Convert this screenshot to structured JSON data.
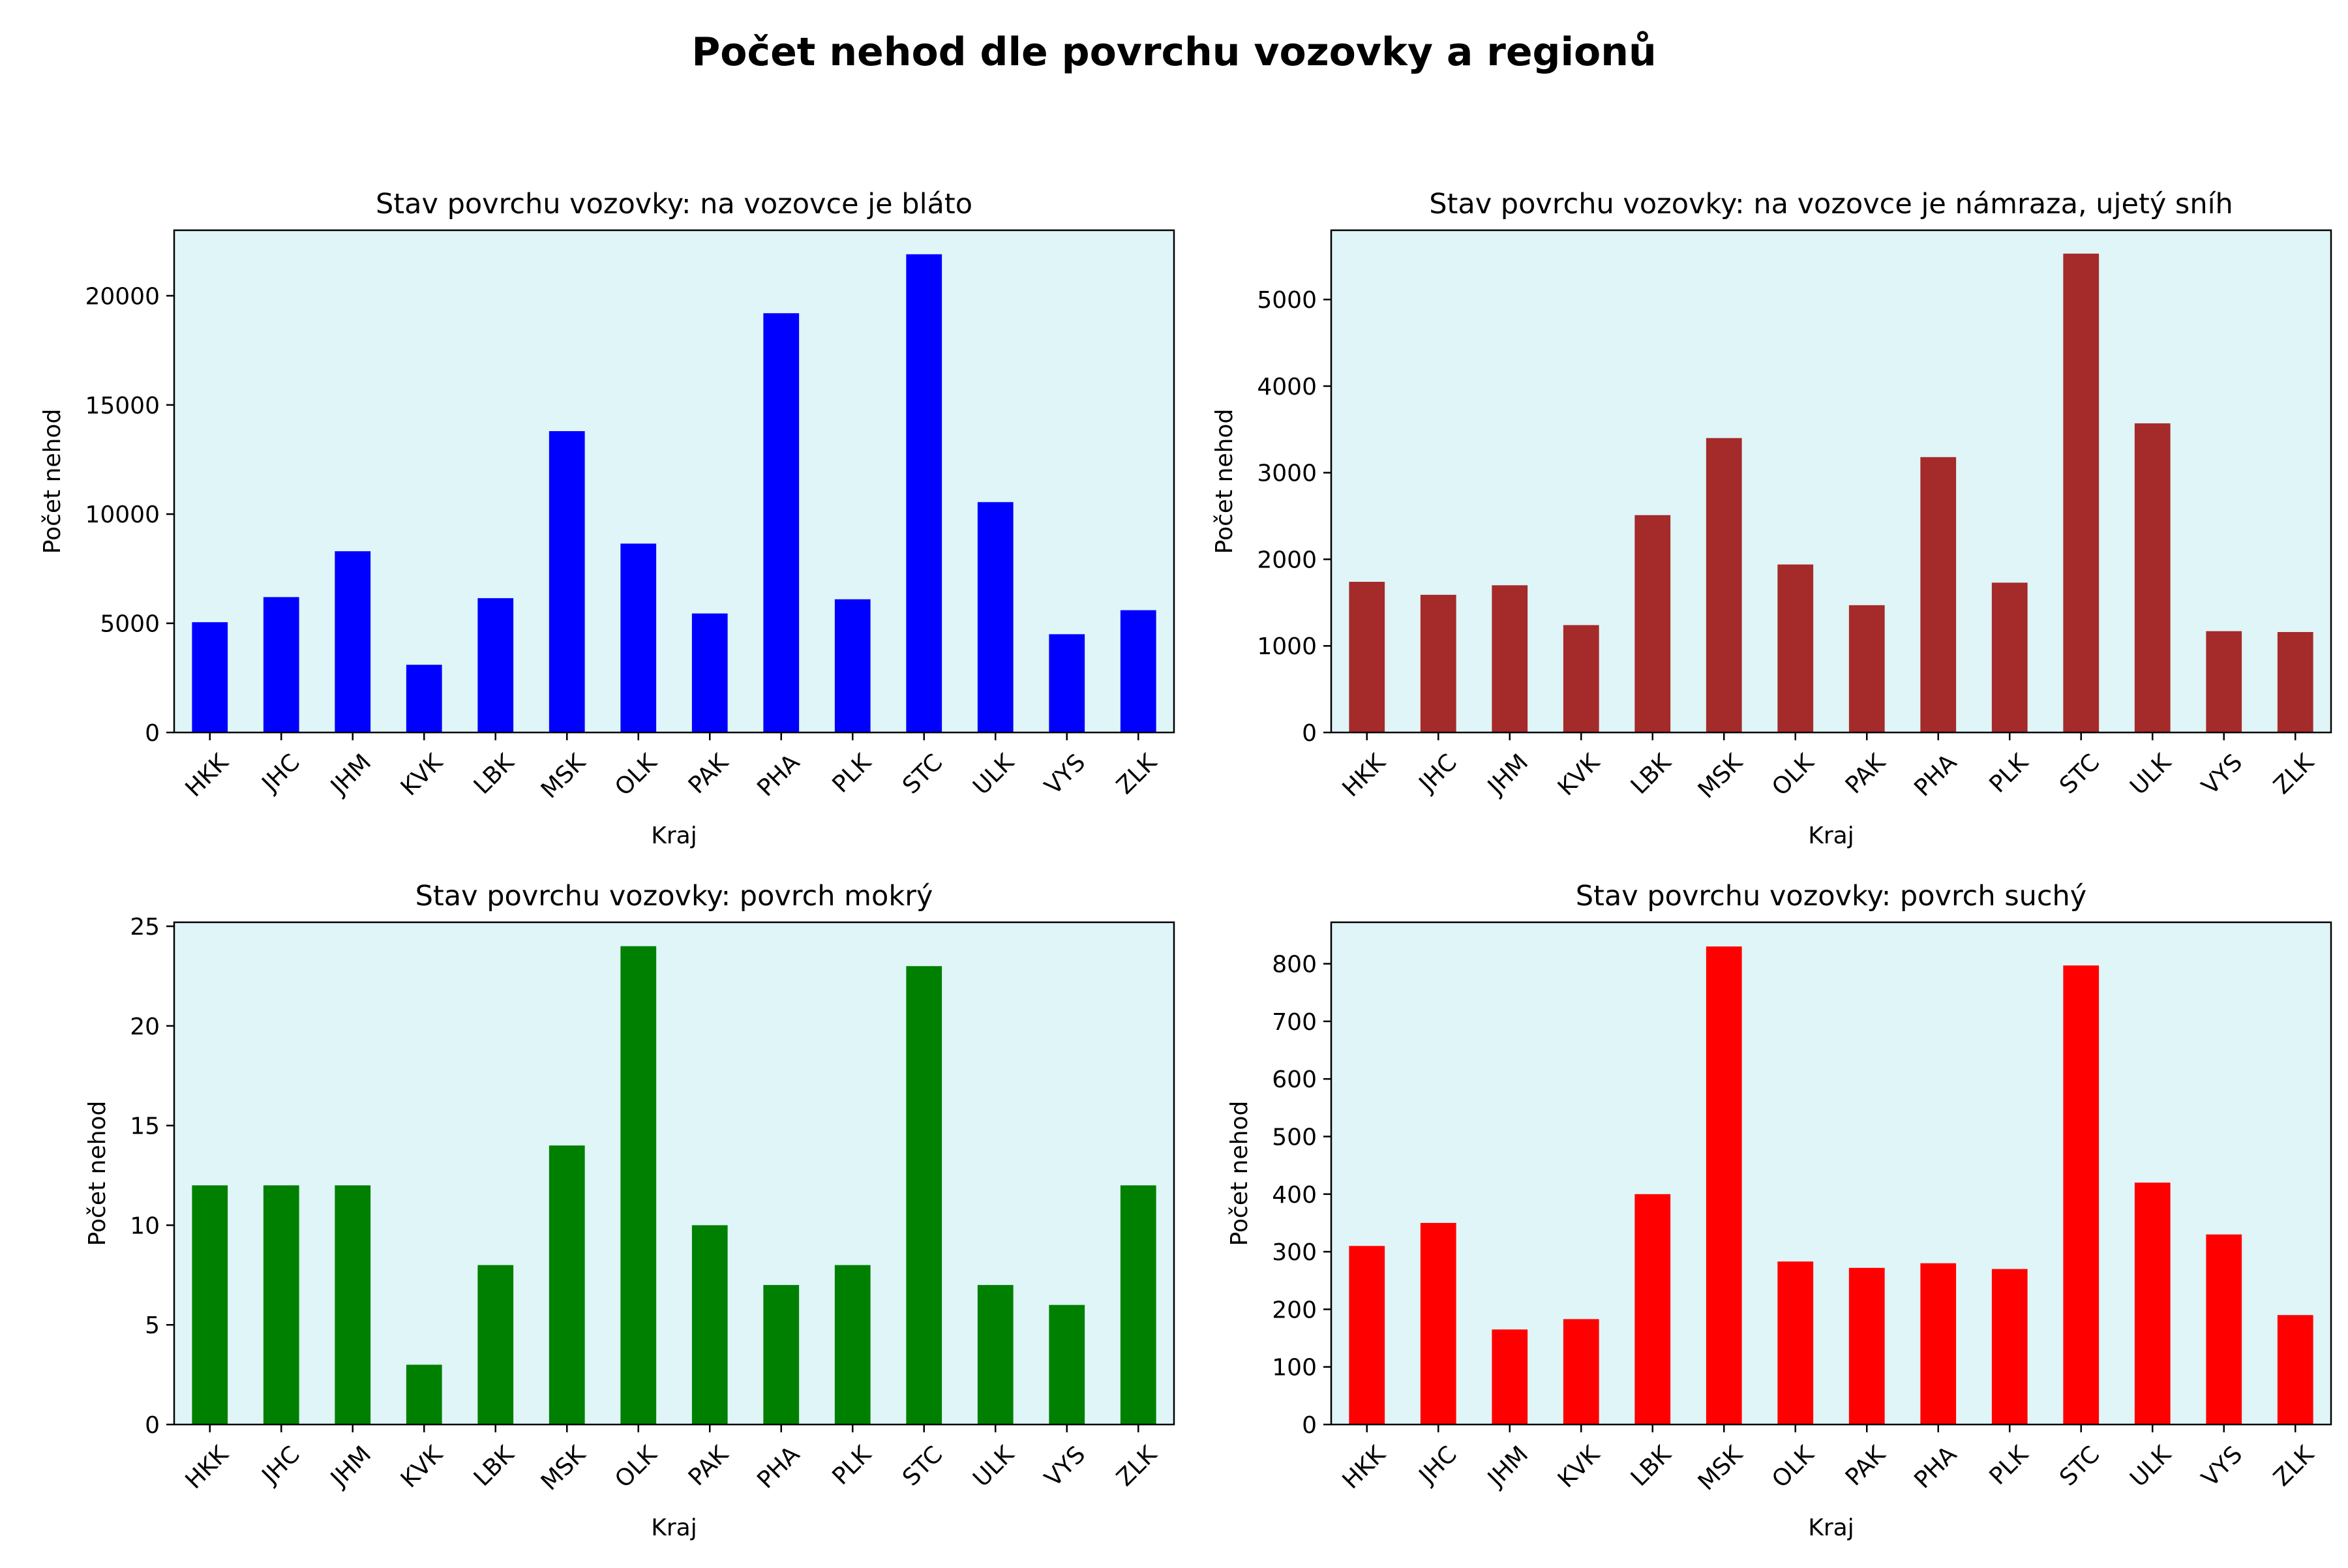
{
  "figure_title": "Počet nehod dle povrchu vozovky a regionů",
  "chart_data": [
    {
      "type": "bar",
      "title": "Stav povrchu vozovky: na vozovce je bláto",
      "xlabel": "Kraj",
      "ylabel": "Počet nehod",
      "color": "#0000ff",
      "background": "#dff5f7",
      "categories": [
        "HKK",
        "JHC",
        "JHM",
        "KVK",
        "LBK",
        "MSK",
        "OLK",
        "PAK",
        "PHA",
        "PLK",
        "STC",
        "ULK",
        "VYS",
        "ZLK"
      ],
      "values": [
        5050,
        6200,
        8300,
        3100,
        6150,
        13800,
        8650,
        5450,
        19200,
        6100,
        21900,
        10550,
        4500,
        5600
      ],
      "ylim": [
        0,
        23000
      ],
      "yticks": [
        0,
        5000,
        10000,
        15000,
        20000
      ]
    },
    {
      "type": "bar",
      "title": "Stav povrchu vozovky: na vozovce je námraza, ujetý sníh",
      "xlabel": "Kraj",
      "ylabel": "Počet nehod",
      "color": "#a52a2a",
      "background": "#dff5f7",
      "categories": [
        "HKK",
        "JHC",
        "JHM",
        "KVK",
        "LBK",
        "MSK",
        "OLK",
        "PAK",
        "PHA",
        "PLK",
        "STC",
        "ULK",
        "VYS",
        "ZLK"
      ],
      "values": [
        1740,
        1590,
        1700,
        1240,
        2510,
        3400,
        1940,
        1470,
        3180,
        1730,
        5530,
        3570,
        1170,
        1160
      ],
      "ylim": [
        0,
        5800
      ],
      "yticks": [
        0,
        1000,
        2000,
        3000,
        4000,
        5000
      ]
    },
    {
      "type": "bar",
      "title": "Stav povrchu vozovky: povrch mokrý",
      "xlabel": "Kraj",
      "ylabel": "Počet nehod",
      "color": "#008000",
      "background": "#dff5f7",
      "categories": [
        "HKK",
        "JHC",
        "JHM",
        "KVK",
        "LBK",
        "MSK",
        "OLK",
        "PAK",
        "PHA",
        "PLK",
        "STC",
        "ULK",
        "VYS",
        "ZLK"
      ],
      "values": [
        12,
        12,
        12,
        3,
        8,
        14,
        24,
        10,
        7,
        8,
        23,
        7,
        6,
        12
      ],
      "ylim": [
        0,
        25.2
      ],
      "yticks": [
        0,
        5,
        10,
        15,
        20,
        25
      ]
    },
    {
      "type": "bar",
      "title": "Stav povrchu vozovky: povrch suchý",
      "xlabel": "Kraj",
      "ylabel": "Počet nehod",
      "color": "#ff0000",
      "background": "#dff5f7",
      "categories": [
        "HKK",
        "JHC",
        "JHM",
        "KVK",
        "LBK",
        "MSK",
        "OLK",
        "PAK",
        "PHA",
        "PLK",
        "STC",
        "ULK",
        "VYS",
        "ZLK"
      ],
      "values": [
        310,
        350,
        165,
        183,
        400,
        830,
        283,
        272,
        280,
        270,
        797,
        420,
        330,
        190
      ],
      "ylim": [
        0,
        872
      ],
      "yticks": [
        0,
        100,
        200,
        300,
        400,
        500,
        600,
        700,
        800
      ]
    }
  ]
}
